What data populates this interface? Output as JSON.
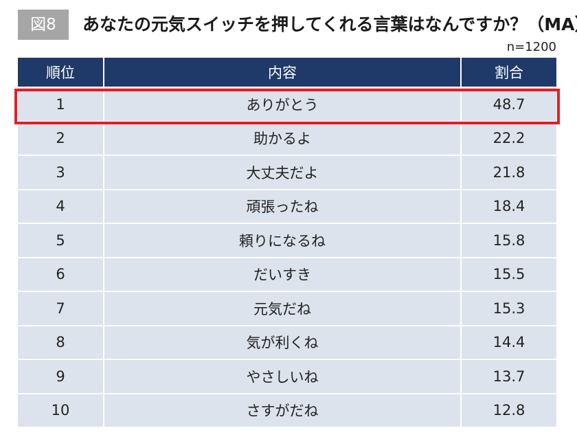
{
  "figure_label": "図8",
  "title": "あなたの元気スイッチを押してくれる言葉はなんですか？（MA）",
  "sample_size": "n=1200",
  "table": {
    "headers": {
      "rank": "順位",
      "content": "内容",
      "percent": "割合"
    },
    "rows": [
      {
        "rank": "1",
        "content": "ありがとう",
        "percent": "48.7"
      },
      {
        "rank": "2",
        "content": "助かるよ",
        "percent": "22.2"
      },
      {
        "rank": "3",
        "content": "大丈夫だよ",
        "percent": "21.8"
      },
      {
        "rank": "4",
        "content": "頑張ったね",
        "percent": "18.4"
      },
      {
        "rank": "5",
        "content": "頼りになるね",
        "percent": "15.8"
      },
      {
        "rank": "6",
        "content": "だいすき",
        "percent": "15.5"
      },
      {
        "rank": "7",
        "content": "元気だね",
        "percent": "15.3"
      },
      {
        "rank": "8",
        "content": "気が利くね",
        "percent": "14.4"
      },
      {
        "rank": "9",
        "content": "やさしいね",
        "percent": "13.7"
      },
      {
        "rank": "10",
        "content": "さすがだね",
        "percent": "12.8"
      }
    ]
  },
  "colors": {
    "header_bg": "#1f3a68",
    "row_bg": "#dde3ec",
    "highlight_border": "#e31e24",
    "badge_bg": "#a6a6a6"
  }
}
